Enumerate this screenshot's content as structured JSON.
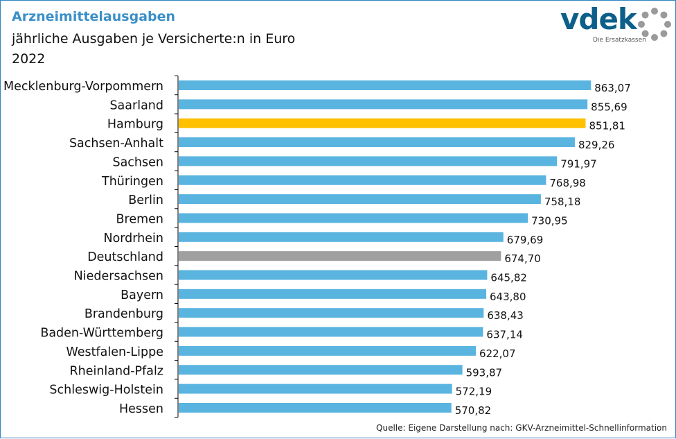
{
  "header": {
    "title": "Arzneimittelausgaben",
    "subtitle": "jährliche Ausgaben je Versicherte:n in Euro",
    "year": "2022"
  },
  "logo": {
    "brand": "vdek",
    "tagline": "Die Ersatzkassen",
    "brand_color": "#0c5f8a",
    "dots_color": "#9a9a9a"
  },
  "footer": {
    "source": "Quelle: Eigene Darstellung nach: GKV-Arzneimittel-Schnellinformation"
  },
  "colors": {
    "default_bar": "#5ab4e0",
    "highlight_bar": "#ffc000",
    "national_bar": "#a0a0a0",
    "title": "#3a8fc8"
  },
  "chart_data": {
    "type": "bar",
    "orientation": "horizontal",
    "title": "Arzneimittelausgaben",
    "subtitle": "jährliche Ausgaben je Versicherte:n in Euro",
    "categories": [
      "Mecklenburg-Vorpommern",
      "Saarland",
      "Hamburg",
      "Sachsen-Anhalt",
      "Sachsen",
      "Thüringen",
      "Berlin",
      "Bremen",
      "Nordrhein",
      "Deutschland",
      "Niedersachsen",
      "Bayern",
      "Brandenburg",
      "Baden-Württemberg",
      "Westfalen-Lippe",
      "Rheinland-Pfalz",
      "Schleswig-Holstein",
      "Hessen"
    ],
    "values": [
      863.07,
      855.69,
      851.81,
      829.26,
      791.97,
      768.98,
      758.18,
      730.95,
      679.69,
      674.7,
      645.82,
      643.8,
      638.43,
      637.14,
      622.07,
      593.87,
      572.19,
      570.82
    ],
    "value_labels": [
      "863,07",
      "855,69",
      "851,81",
      "829,26",
      "791,97",
      "768,98",
      "758,18",
      "730,95",
      "679,69",
      "674,70",
      "645,82",
      "643,80",
      "638,43",
      "637,14",
      "622,07",
      "593,87",
      "572,19",
      "570,82"
    ],
    "highlight": {
      "Hamburg": "#ffc000",
      "Deutschland": "#a0a0a0"
    },
    "xlim": [
      0,
      1000
    ],
    "x_axis_visible": false,
    "grid": false,
    "legend": "none"
  }
}
